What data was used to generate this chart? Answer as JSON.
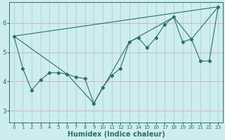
{
  "xlabel": "Humidex (Indice chaleur)",
  "bg_color": "#ceeeed",
  "grid_color_h": "#d4a0a0",
  "grid_color_v": "#a8c8c8",
  "line_color": "#2a7068",
  "xlim": [
    -0.5,
    23.5
  ],
  "ylim": [
    2.6,
    6.7
  ],
  "yticks": [
    3,
    4,
    5,
    6
  ],
  "xticks": [
    0,
    1,
    2,
    3,
    4,
    5,
    6,
    7,
    8,
    9,
    10,
    11,
    12,
    13,
    14,
    15,
    16,
    17,
    18,
    19,
    20,
    21,
    22,
    23
  ],
  "series": [
    [
      0,
      5.55
    ],
    [
      1,
      4.45
    ],
    [
      2,
      3.7
    ],
    [
      3,
      4.05
    ],
    [
      4,
      4.3
    ],
    [
      5,
      4.3
    ],
    [
      6,
      4.25
    ],
    [
      7,
      4.15
    ],
    [
      8,
      4.1
    ],
    [
      9,
      3.25
    ],
    [
      10,
      3.8
    ],
    [
      11,
      4.2
    ],
    [
      12,
      4.45
    ],
    [
      13,
      5.35
    ],
    [
      14,
      5.5
    ],
    [
      15,
      5.15
    ],
    [
      16,
      5.5
    ],
    [
      17,
      5.95
    ],
    [
      18,
      6.2
    ],
    [
      19,
      5.35
    ],
    [
      20,
      5.45
    ],
    [
      21,
      4.7
    ],
    [
      22,
      4.7
    ],
    [
      23,
      6.55
    ]
  ],
  "line2": [
    [
      0,
      5.55
    ],
    [
      23,
      6.55
    ]
  ],
  "line3": [
    [
      0,
      5.55
    ],
    [
      6,
      4.25
    ],
    [
      9,
      3.25
    ],
    [
      13,
      5.35
    ],
    [
      18,
      6.2
    ],
    [
      20,
      5.45
    ],
    [
      23,
      6.55
    ]
  ]
}
